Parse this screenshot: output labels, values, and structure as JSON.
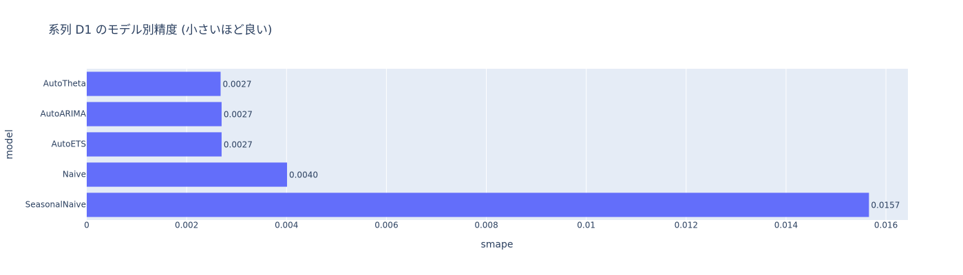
{
  "chart_data": {
    "type": "bar",
    "orientation": "horizontal",
    "title": "系列 D1 のモデル別精度 (小さいほど良い)",
    "x_label": "smape",
    "y_label": "model",
    "categories": [
      "AutoTheta",
      "AutoARIMA",
      "AutoETS",
      "Naive",
      "SeasonalNaive"
    ],
    "values": [
      0.00268,
      0.0027,
      0.0027,
      0.00401,
      0.01566
    ],
    "value_labels": [
      "0.0027",
      "0.0027",
      "0.0027",
      "0.0040",
      "0.0157"
    ],
    "color": "#636efa",
    "xlim": [
      0,
      0.01644
    ],
    "xticks": [
      0,
      0.002,
      0.004,
      0.006,
      0.008,
      0.01,
      0.012,
      0.014,
      0.016
    ],
    "grid": true
  }
}
